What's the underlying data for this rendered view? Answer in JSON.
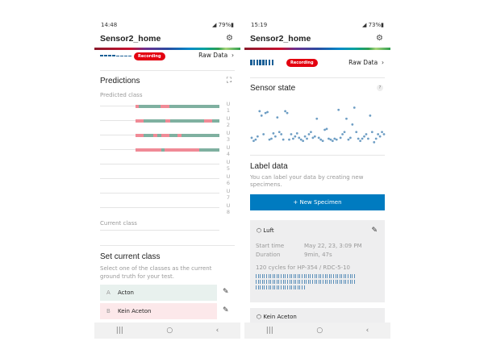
{
  "colors": {
    "class_a": "#7fb0a0",
    "class_b": "#f08a96",
    "recording": "#e3000f",
    "primary": "#007bc0",
    "scatter": "#6e9ec4"
  },
  "left": {
    "status": {
      "time": "14:48",
      "battery": "79%"
    },
    "title": "Sensor2_home",
    "recording_label": "Recording",
    "raw_data_label": "Raw Data",
    "predictions": {
      "heading": "Predictions",
      "predicted_class_label": "Predicted class",
      "current_class_label": "Current class",
      "rows": [
        {
          "label": "U 1",
          "segments": [
            [
              "B",
              0,
              4
            ],
            [
              "A",
              4,
              30
            ],
            [
              "B",
              30,
              40
            ],
            [
              "A",
              40,
              100
            ]
          ]
        },
        {
          "label": "U 2",
          "segments": [
            [
              "B",
              0,
              10
            ],
            [
              "A",
              10,
              36
            ],
            [
              "B",
              36,
              41
            ],
            [
              "A",
              41,
              82
            ],
            [
              "B",
              82,
              91
            ],
            [
              "A",
              91,
              100
            ]
          ]
        },
        {
          "label": "U 3",
          "segments": [
            [
              "B",
              0,
              10
            ],
            [
              "A",
              10,
              21
            ],
            [
              "B",
              21,
              26
            ],
            [
              "A",
              26,
              31
            ],
            [
              "B",
              31,
              40
            ],
            [
              "A",
              40,
              50
            ],
            [
              "B",
              50,
              55
            ],
            [
              "A",
              55,
              100
            ]
          ]
        },
        {
          "label": "U 4",
          "segments": [
            [
              "B",
              0,
              31
            ],
            [
              "A",
              31,
              35
            ],
            [
              "B",
              35,
              76
            ],
            [
              "A",
              76,
              100
            ]
          ]
        },
        {
          "label": "U 5",
          "segments": []
        },
        {
          "label": "U 6",
          "segments": []
        },
        {
          "label": "U 7",
          "segments": []
        },
        {
          "label": "U 8",
          "segments": []
        }
      ]
    },
    "set_class": {
      "heading": "Set current class",
      "description": "Select one of the classes as the current ground truth for your test.",
      "classes": [
        {
          "key": "A",
          "name": "Acton"
        },
        {
          "key": "B",
          "name": "Kein Aceton"
        }
      ]
    }
  },
  "right": {
    "status": {
      "time": "15:19",
      "battery": "73%"
    },
    "title": "Sensor2_home",
    "recording_label": "Recording",
    "raw_data_label": "Raw Data",
    "sensor_state": {
      "heading": "Sensor state",
      "help": "?",
      "points": [
        0.22,
        0.15,
        0.18,
        0.25,
        0.82,
        0.72,
        0.3,
        0.78,
        0.8,
        0.18,
        0.2,
        0.32,
        0.25,
        0.68,
        0.35,
        0.3,
        0.18,
        0.82,
        0.78,
        0.18,
        0.3,
        0.2,
        0.25,
        0.32,
        0.22,
        0.18,
        0.15,
        0.25,
        0.2,
        0.3,
        0.35,
        0.22,
        0.25,
        0.65,
        0.22,
        0.18,
        0.15,
        0.4,
        0.42,
        0.2,
        0.18,
        0.15,
        0.2,
        0.18,
        0.85,
        0.22,
        0.3,
        0.35,
        0.65,
        0.18,
        0.22,
        0.52,
        0.9,
        0.35,
        0.2,
        0.15,
        0.2,
        0.25,
        0.3,
        0.2,
        0.72,
        0.35,
        0.12,
        0.2,
        0.3,
        0.25,
        0.35,
        0.3
      ]
    },
    "label_data": {
      "heading": "Label data",
      "description": "You can label your data by creating new specimens.",
      "new_button": "+ New Specimen"
    },
    "specimens": [
      {
        "name": "Luft",
        "start_label": "Start time",
        "start": "May 22, 23,  3:09 PM",
        "duration_label": "Duration",
        "duration": "9min, 47s",
        "cycles": "120 cycles for HP-354 / RDC-5-10",
        "cycle_count": 120
      },
      {
        "name": "Kein Aceton"
      }
    ]
  }
}
